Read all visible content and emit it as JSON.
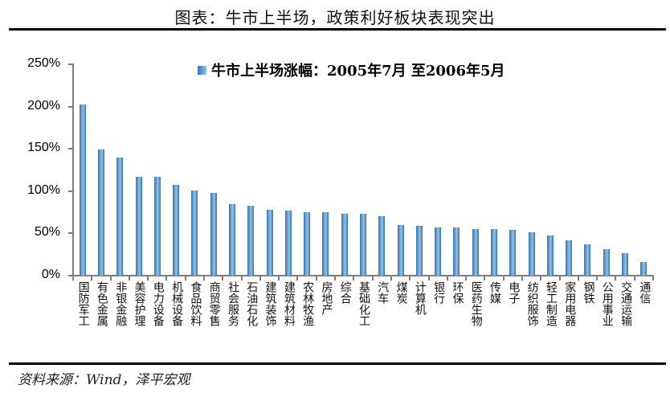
{
  "header": {
    "title": "图表：牛市上半场，政策利好板块表现突出"
  },
  "footer": {
    "source": "资料来源：Wind，泽平宏观"
  },
  "colors": {
    "bar_dark": "#2e75b6",
    "bar_light": "#9cc2e3",
    "axis": "#7f7f7f",
    "rule": "#000000"
  },
  "chart_data": {
    "type": "bar",
    "title": "图表：牛市上半场，政策利好板块表现突出",
    "xlabel": "",
    "ylabel": "",
    "ylim": [
      0,
      250
    ],
    "yticks": [
      "0%",
      "50%",
      "100%",
      "150%",
      "200%",
      "250%"
    ],
    "grid": false,
    "legend_position": "top-center",
    "categories": [
      "国防军工",
      "有色金属",
      "非银金融",
      "美容护理",
      "电力设备",
      "机械设备",
      "食品饮料",
      "商贸零售",
      "社会服务",
      "石油石化",
      "建筑装饰",
      "建筑材料",
      "农林牧渔",
      "房地产",
      "综合",
      "基础化工",
      "汽车",
      "煤炭",
      "计算机",
      "银行",
      "环保",
      "医药生物",
      "传媒",
      "电子",
      "纺织服饰",
      "轻工制造",
      "家用电器",
      "钢铁",
      "公用事业",
      "交通运输",
      "通信"
    ],
    "series": [
      {
        "name": "牛市上半场涨幅：2005年7月 至2006年5月",
        "unit": "%",
        "values": [
          202,
          149,
          140,
          117,
          117,
          107,
          101,
          98,
          85,
          83,
          78,
          77,
          75,
          75,
          73,
          73,
          70,
          60,
          59,
          57,
          57,
          55,
          55,
          54,
          51,
          48,
          42,
          37,
          31,
          27,
          16
        ]
      }
    ]
  }
}
